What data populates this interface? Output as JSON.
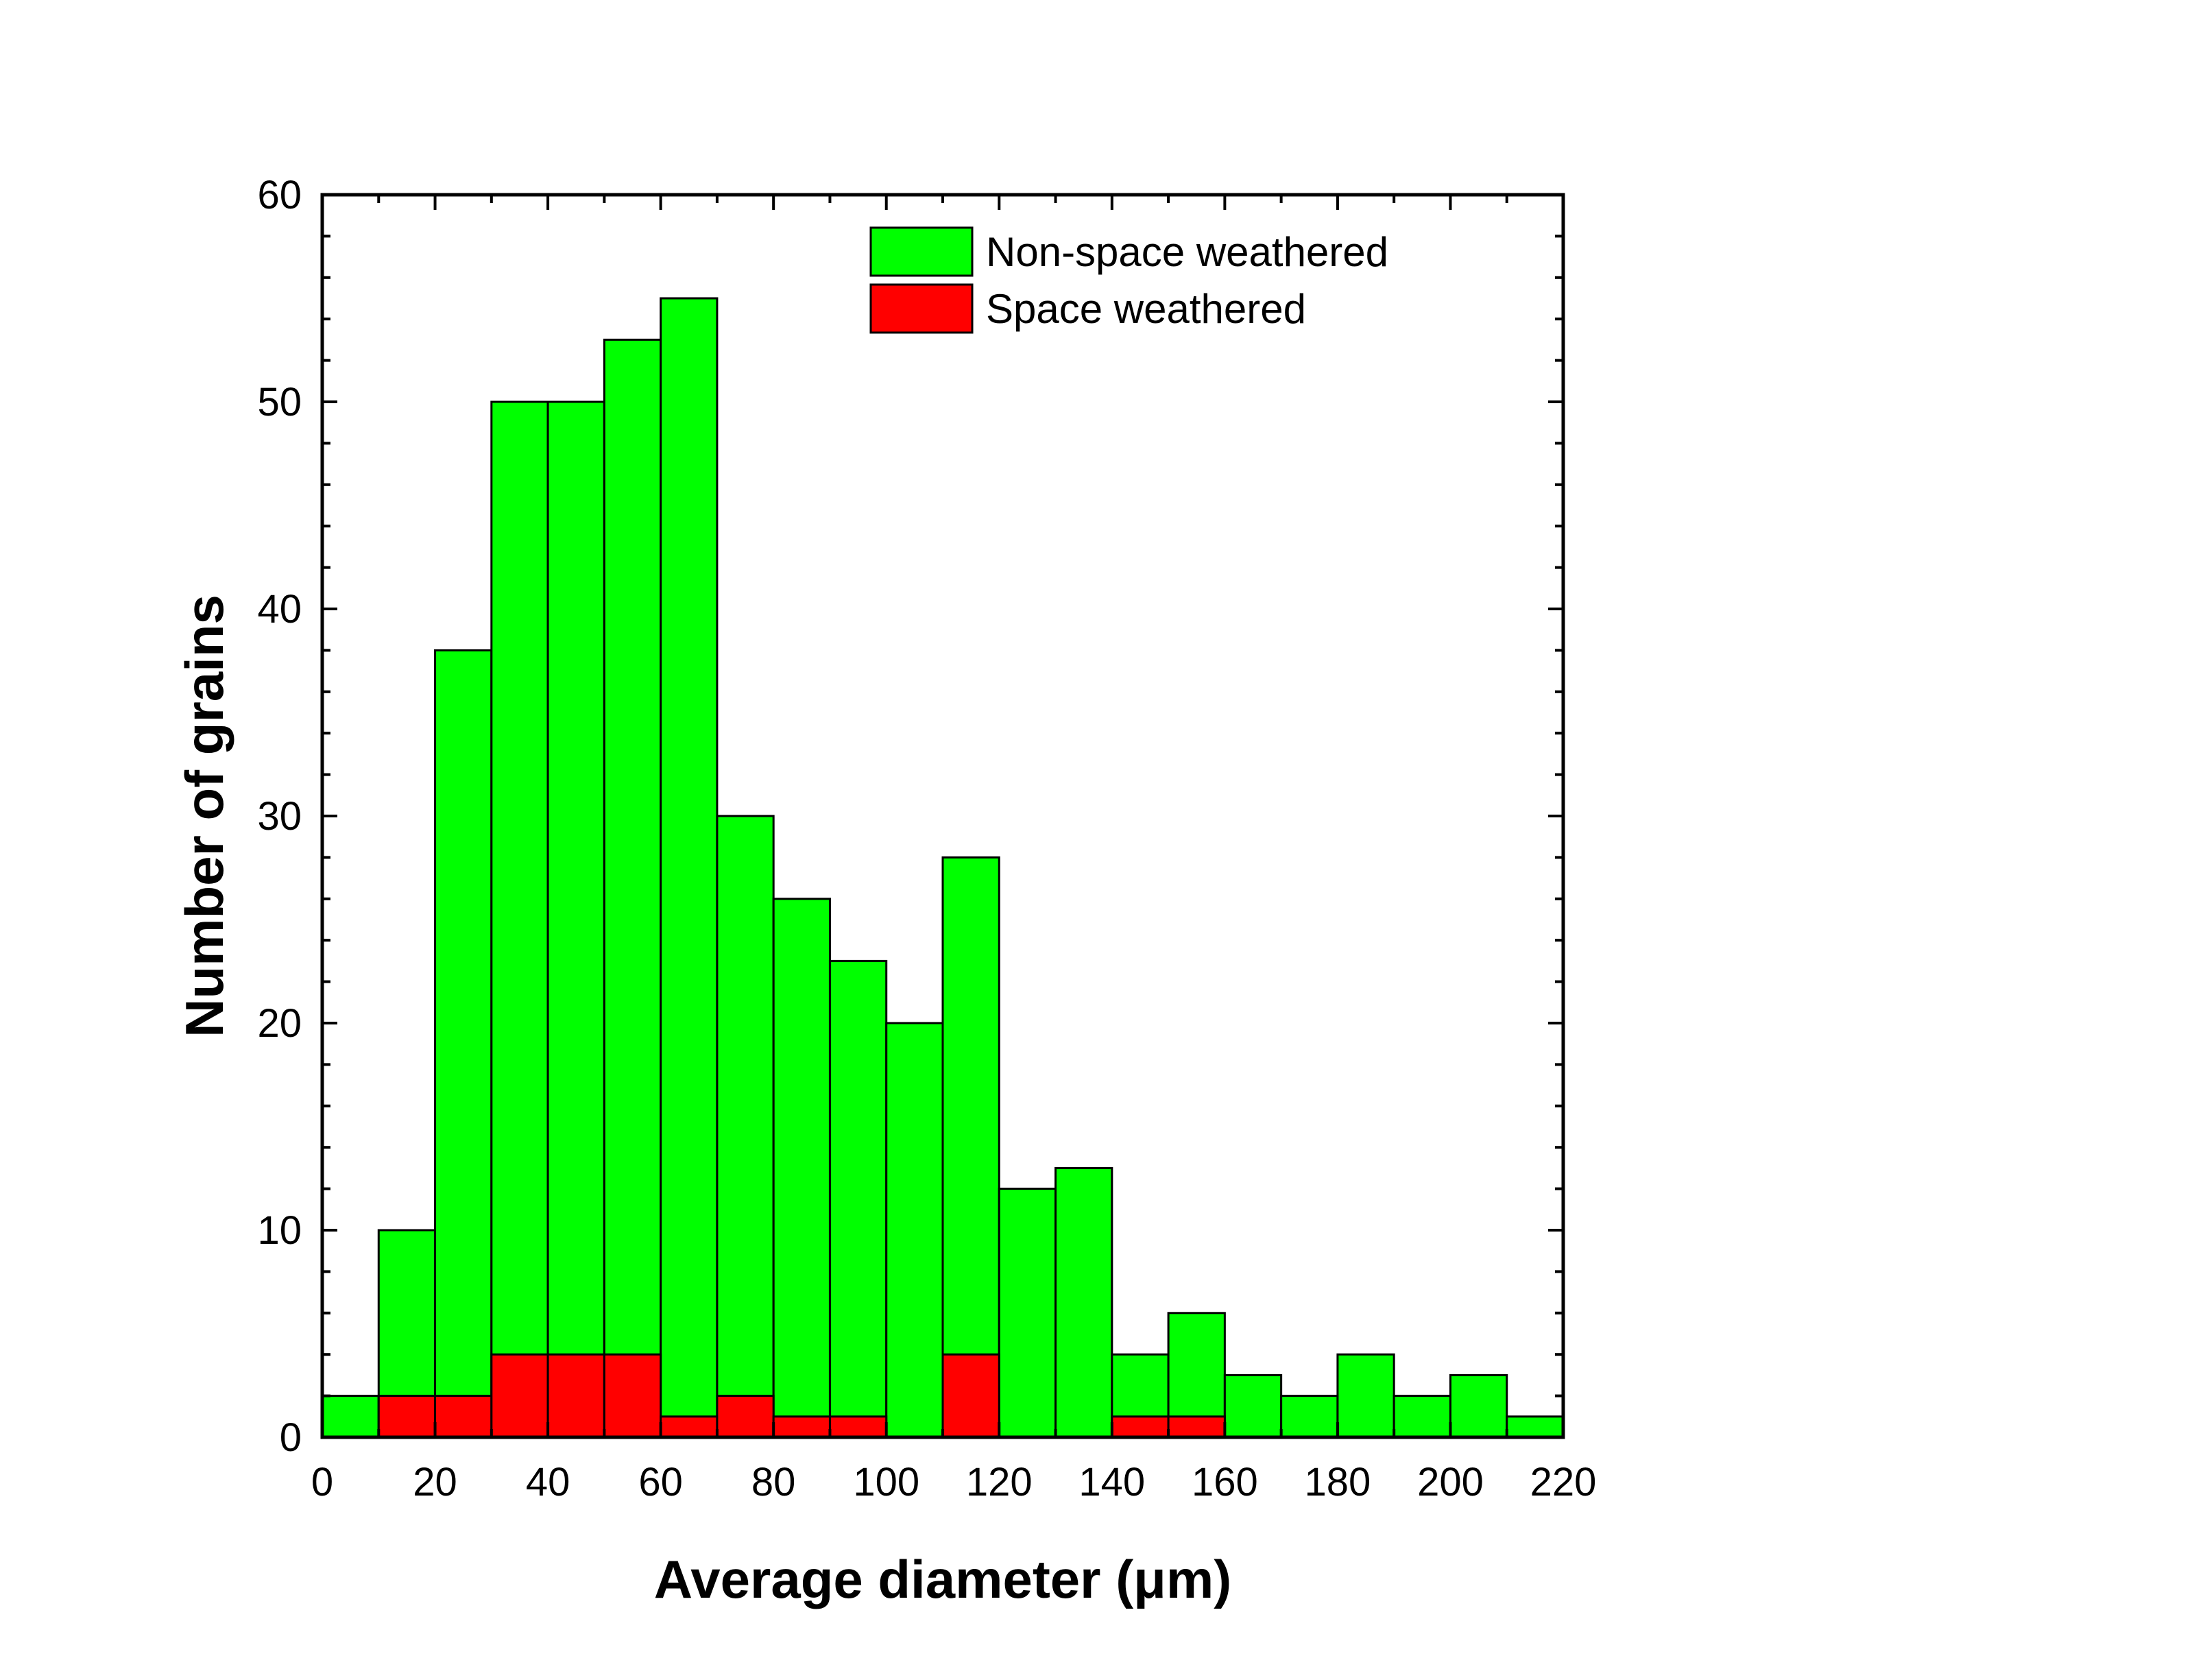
{
  "chart_data": {
    "type": "bar",
    "bin_edges": [
      0,
      10,
      20,
      30,
      40,
      50,
      60,
      70,
      80,
      90,
      100,
      110,
      120,
      130,
      140,
      150,
      160,
      170,
      180,
      190,
      200,
      210,
      220
    ],
    "series": [
      {
        "name": "Non-space weathered",
        "color": "#00ff00",
        "values": [
          2,
          10,
          38,
          50,
          50,
          53,
          55,
          30,
          26,
          23,
          20,
          28,
          12,
          13,
          4,
          6,
          3,
          2,
          4,
          2,
          3,
          1
        ]
      },
      {
        "name": "Space weathered",
        "color": "#ff0000",
        "values": [
          0,
          2,
          2,
          4,
          4,
          4,
          1,
          2,
          1,
          1,
          0,
          4,
          0,
          0,
          1,
          1,
          0,
          0,
          0,
          0,
          0,
          0
        ]
      }
    ],
    "xlabel": "Average diameter (μm)",
    "ylabel": "Number of grains",
    "xlim": [
      0,
      220
    ],
    "ylim": [
      0,
      60
    ],
    "xticks": [
      "0",
      "20",
      "40",
      "60",
      "80",
      "100",
      "120",
      "140",
      "160",
      "180",
      "200",
      "220"
    ],
    "yticks": [
      "0",
      "10",
      "20",
      "30",
      "40",
      "50",
      "60"
    ],
    "grid": false,
    "legend_position": "top-right"
  }
}
